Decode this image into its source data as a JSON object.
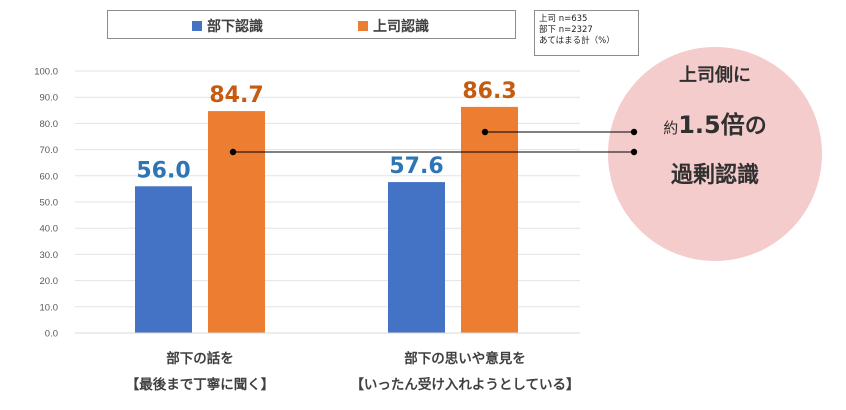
{
  "chart_data": {
    "type": "bar",
    "categories": [
      [
        "部下の話を",
        "【最後まで丁寧に聞く】"
      ],
      [
        "部下の思いや意見を",
        "【いったん受け入れようとしている】"
      ]
    ],
    "series": [
      {
        "name": "部下認識",
        "color": "#4472c4",
        "label_color": "#2e75b6",
        "values": [
          56.0,
          57.6
        ]
      },
      {
        "name": "上司認識",
        "color": "#ed7d31",
        "label_color": "#c55a11",
        "values": [
          84.7,
          86.3
        ]
      }
    ],
    "ylim": [
      0,
      100
    ],
    "yticks": [
      "0.0",
      "10.0",
      "20.0",
      "30.0",
      "40.0",
      "50.0",
      "60.0",
      "70.0",
      "80.0",
      "90.0",
      "100.0"
    ],
    "data_labels": [
      [
        "56.0",
        "57.6"
      ],
      [
        "84.7",
        "86.3"
      ]
    ],
    "grid": true,
    "legend_position": "top"
  },
  "note": {
    "lines": [
      "上司 n=635",
      "部下 n=2327",
      "あてはまる計（%）"
    ]
  },
  "callout": {
    "line1": "上司側に",
    "line2_prefix": "約",
    "line2_value": "1.5倍",
    "line2_suffix": "の",
    "line3": "過剰認識",
    "bg_color": "#f4cccc"
  }
}
